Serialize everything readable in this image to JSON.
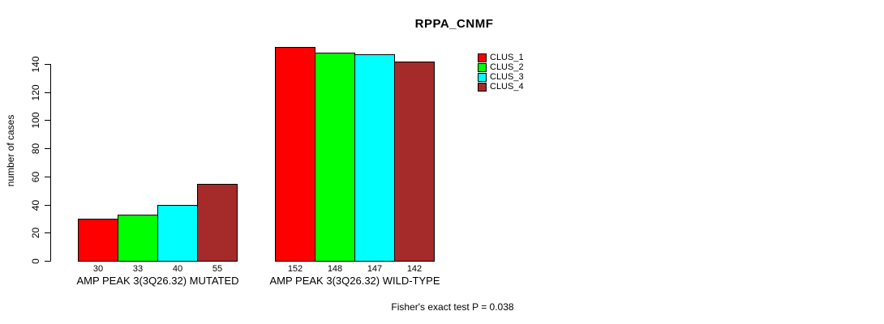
{
  "chart_data": {
    "type": "bar",
    "title": "RPPA_CNMF",
    "ylabel": "number of cases",
    "xlabel": "",
    "ylim": [
      0,
      140
    ],
    "yticks": [
      0,
      20,
      40,
      60,
      80,
      100,
      120,
      140
    ],
    "grid": false,
    "background_color": "#ffffff",
    "axis_color": "#000000",
    "bar_border_color": "#000000",
    "categories": [
      "AMP PEAK 3(3Q26.32) MUTATED",
      "AMP PEAK 3(3Q26.32) WILD-TYPE"
    ],
    "series": [
      {
        "name": "CLUS_1",
        "color": "#ff0000",
        "values": [
          30,
          152
        ]
      },
      {
        "name": "CLUS_2",
        "color": "#00ff00",
        "values": [
          33,
          148
        ]
      },
      {
        "name": "CLUS_3",
        "color": "#00ffff",
        "values": [
          40,
          147
        ]
      },
      {
        "name": "CLUS_4",
        "color": "#a52a2a",
        "values": [
          55,
          142
        ]
      }
    ],
    "bar_value_labels_shown": true,
    "legend": {
      "position": "top-right",
      "entries": [
        "CLUS_1",
        "CLUS_2",
        "CLUS_3",
        "CLUS_4"
      ]
    },
    "annotation": "Fisher's exact test P = 0.038"
  }
}
